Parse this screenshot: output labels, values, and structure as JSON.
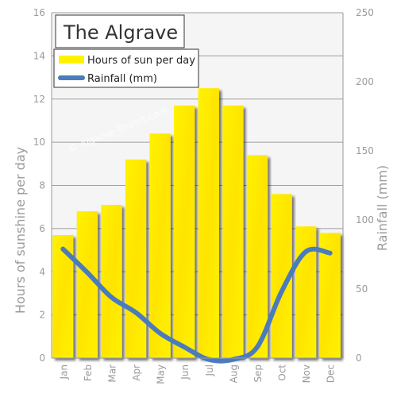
{
  "chart_data": {
    "type": "bar",
    "title": "The Algrave",
    "watermark": "© Algarve-Tourist.com",
    "categories": [
      "Jan",
      "Feb",
      "Mar",
      "Apr",
      "May",
      "Jun",
      "Jul",
      "Aug",
      "Sep",
      "Oct",
      "Nov",
      "Dec"
    ],
    "series": [
      {
        "name": "Hours of sun per day",
        "type": "bar",
        "axis": "left",
        "color": "#ffee00",
        "values": [
          5.7,
          6.8,
          7.1,
          9.2,
          10.4,
          11.7,
          12.5,
          11.7,
          9.4,
          7.6,
          6.1,
          5.8
        ]
      },
      {
        "name": "Rainfall (mm)",
        "type": "line",
        "axis": "right",
        "color": "#4a7bbd",
        "values": [
          79,
          62,
          44,
          33,
          18,
          8,
          -1,
          -1,
          8,
          48,
          77,
          76
        ]
      }
    ],
    "ylabel": "Hours of sunshine per day",
    "ylabel_right": "Rainfall (mm)",
    "ylim": [
      0,
      16
    ],
    "yticks": [
      0,
      2,
      4,
      6,
      8,
      10,
      12,
      14,
      16
    ],
    "ylim_right": [
      0,
      250
    ],
    "yticks_right": [
      0,
      50,
      100,
      150,
      200,
      250
    ],
    "grid": true,
    "legend_position": "top-left"
  }
}
